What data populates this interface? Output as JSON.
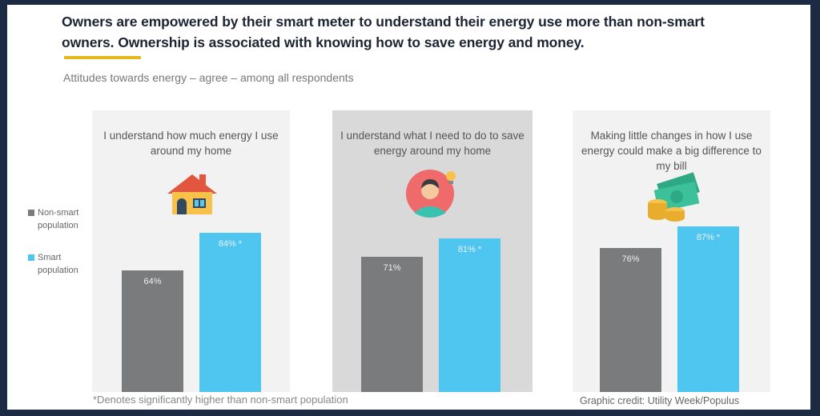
{
  "headline": "Owners are empowered by their smart meter to understand their energy use more than non-smart owners. Ownership is associated with knowing how to save energy and money.",
  "subtitle": "Attitudes towards energy – agree – among all respondents",
  "footnote": "*Denotes significantly higher than non-smart population",
  "credit": "Graphic credit: Utility Week/Populus",
  "colors": {
    "non_smart": "#7a7b7d",
    "smart": "#4fc6f0",
    "accent": "#e7b81c",
    "frame": "#1d2a44"
  },
  "chart_data": {
    "type": "bar",
    "ylim": [
      0,
      100
    ],
    "legend": {
      "placement": "left",
      "entries": [
        "Non-smart population",
        "Smart population"
      ]
    },
    "series": [
      {
        "name": "Non-smart population",
        "values": [
          64,
          71,
          76
        ],
        "labels": [
          "64%",
          "71%",
          "76%"
        ]
      },
      {
        "name": "Smart population",
        "values": [
          84,
          81,
          87
        ],
        "labels": [
          "84% *",
          "81% *",
          "87% *"
        ]
      }
    ],
    "categories": [
      "I understand how much energy I use around my home",
      "I understand what I need to do to save energy around my home",
      "Making little changes in how I use energy could make a big difference to my bill"
    ],
    "panels": [
      {
        "icon": "house-icon",
        "background": "#f2f2f2"
      },
      {
        "icon": "person-lightbulb-icon",
        "background": "#d9d9d9"
      },
      {
        "icon": "money-coins-icon",
        "background": "#f2f2f2"
      }
    ]
  }
}
